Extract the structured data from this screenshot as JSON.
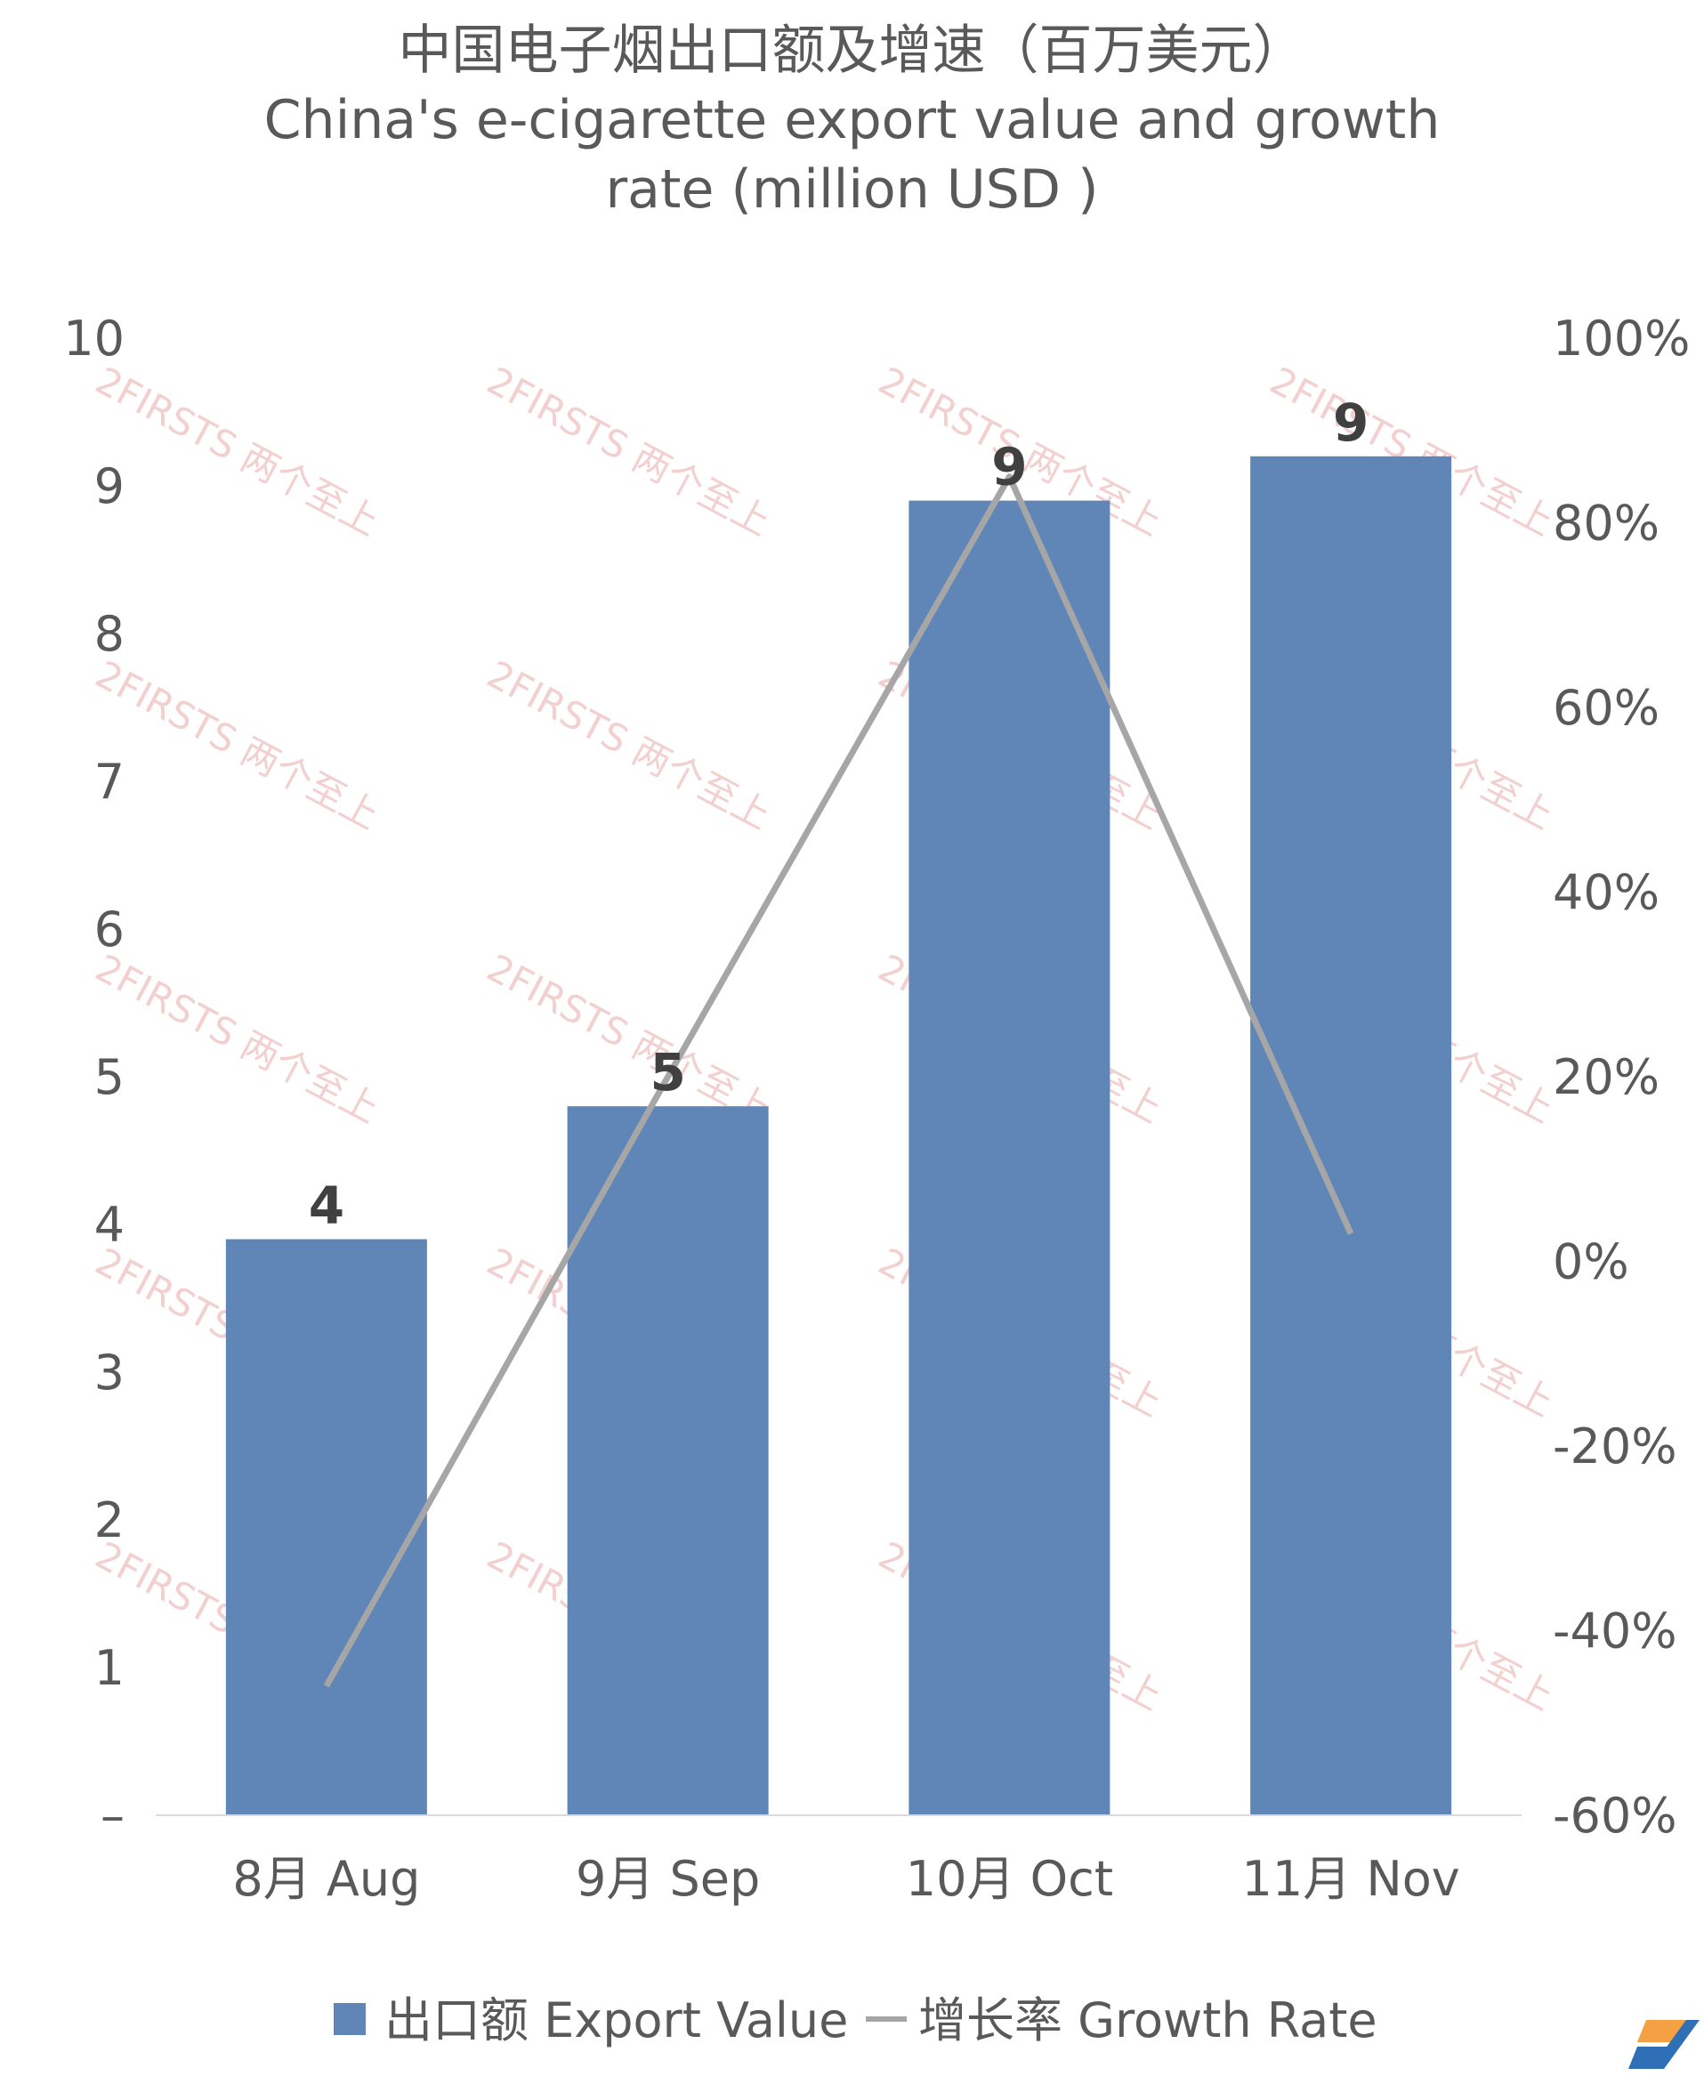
{
  "chart_data": {
    "type": "bar",
    "title_zh": "中国电子烟出口额及增速（百万美元）",
    "title_en_line1": "China's e-cigarette export value and growth",
    "title_en_line2": "rate (million USD )",
    "categories": [
      "8月 Aug",
      "9月 Sep",
      "10月 Oct",
      "11月 Nov"
    ],
    "series": [
      {
        "name": "出口额 Export Value",
        "type": "bar",
        "axis": "left",
        "values": [
          3.9,
          4.8,
          8.9,
          9.2
        ],
        "labels": [
          "4",
          "5",
          "9",
          "9"
        ],
        "color": "#6086b8"
      },
      {
        "name": "增长率 Growth Rate",
        "type": "line",
        "axis": "right",
        "values": [
          -46,
          20,
          85,
          3
        ],
        "color": "#a6a6a6"
      }
    ],
    "y_left": {
      "min": 0,
      "max": 10,
      "ticks": [
        "–",
        "1",
        "2",
        "3",
        "4",
        "5",
        "6",
        "7",
        "8",
        "9",
        "10"
      ]
    },
    "y_right": {
      "min": -60,
      "max": 100,
      "ticks": [
        "-60%",
        "-40%",
        "-20%",
        "0%",
        "20%",
        "40%",
        "60%",
        "80%",
        "100%"
      ]
    },
    "grid": false,
    "legend_position": "bottom",
    "watermark": "2FIRSTS 两个至上"
  }
}
